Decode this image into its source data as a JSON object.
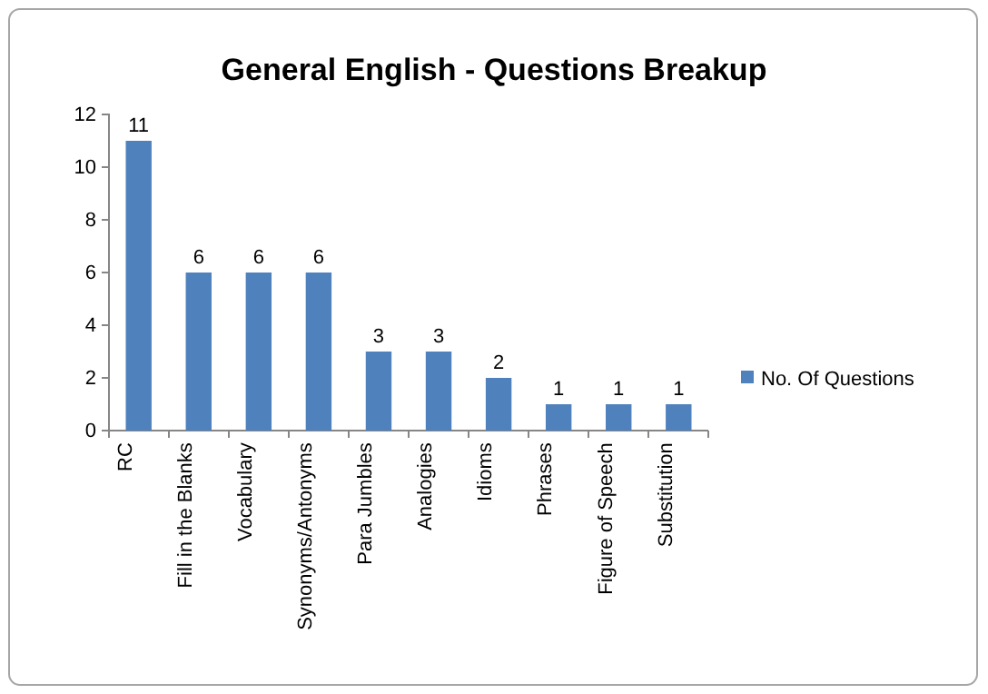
{
  "chart_data": {
    "type": "bar",
    "title": "General English - Questions Breakup",
    "categories": [
      "RC",
      "Fill in the Blanks",
      "Vocabulary",
      "Synonyms/Antonyms",
      "Para Jumbles",
      "Analogies",
      "Idioms",
      "Phrases",
      "Figure of Speech",
      "Substitution"
    ],
    "series": [
      {
        "name": "No. Of Questions",
        "color": "#4f81bd",
        "values": [
          11,
          6,
          6,
          6,
          3,
          3,
          2,
          1,
          1,
          1
        ]
      }
    ],
    "ylim": [
      0,
      12
    ],
    "yticks": [
      0,
      2,
      4,
      6,
      8,
      10,
      12
    ],
    "grid": false,
    "legend": "right",
    "data_labels": true
  }
}
